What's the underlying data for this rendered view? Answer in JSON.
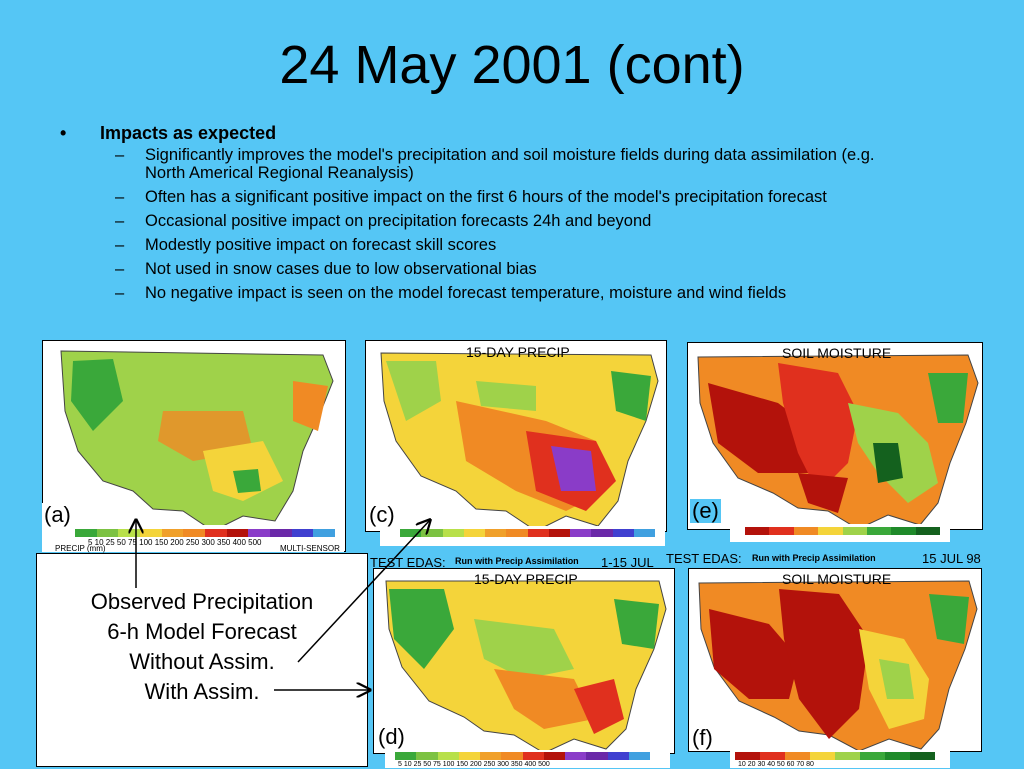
{
  "slide": {
    "title": "24 May 2001 (cont)",
    "bullet": "Impacts as expected",
    "bullet_marker": "•",
    "dash": "–",
    "sub_bullets": [
      "Significantly improves the model's precipitation and soil moisture fields during data assimilation (e.g. North Americal Regional Reanalysis)",
      "Often has a significant positive impact on the first 6 hours of the model's precipitation forecast",
      "Occasional positive impact on precipitation forecasts 24h and beyond",
      "Modestly positive impact on forecast skill scores",
      "Not used in snow cases due to low observational bias",
      "No negative impact is seen on the model forecast temperature, moisture and wind fields"
    ]
  },
  "legend_box": {
    "lines": [
      "Observed Precipitation",
      "6-h Model Forecast",
      "Without Assim.",
      "With Assim."
    ]
  },
  "panels": {
    "a": "(a)",
    "c": "(c)",
    "d": "(d)",
    "e": "(e)",
    "f": "(f)"
  },
  "map_titles": {
    "precip": "15-DAY PRECIP",
    "soil": "SOIL MOISTURE"
  },
  "run_labels": {
    "test_edas": "TEST EDAS:",
    "run_with_assim": "Run with Precip Assimilation",
    "date_precip": "1-15 JUL",
    "date_soil": "15 JUL 98"
  },
  "colorbar_labels": {
    "precip_units": "PRECIP (mm)",
    "multi_sensor": "MULTI-SENSOR",
    "precip_ticks": "5  10  25  50  75  100  150  200  250  300  350  400  500",
    "soil_ticks": "10  20  30  40  50  60  70  80"
  },
  "colors": {
    "background": "#55c6f5",
    "dark_red": "#b3120b",
    "red": "#e0301e",
    "orange": "#f08a24",
    "yellow": "#f4d43a",
    "light_green": "#9fd24a",
    "green": "#3aa83a",
    "dark_green": "#14611e",
    "purple": "#8a3cc8"
  }
}
